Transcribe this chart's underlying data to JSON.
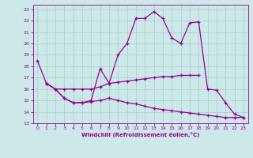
{
  "xlabel": "Windchill (Refroidissement éolien,°C)",
  "background_color": "#cce8e8",
  "line_color": "#990099",
  "grid_color": "#aacccc",
  "xlim": [
    -0.5,
    23.5
  ],
  "ylim": [
    13.0,
    23.4
  ],
  "yticks": [
    13,
    14,
    15,
    16,
    17,
    18,
    19,
    20,
    21,
    22,
    23
  ],
  "xticks": [
    0,
    1,
    2,
    3,
    4,
    5,
    6,
    7,
    8,
    9,
    10,
    11,
    12,
    13,
    14,
    15,
    16,
    17,
    18,
    19,
    20,
    21,
    22,
    23
  ],
  "line1_x": [
    0,
    1,
    2,
    3,
    4,
    5,
    6,
    7,
    8,
    9,
    10,
    11,
    12,
    13,
    14,
    15,
    16,
    17,
    18,
    19,
    20,
    21,
    22,
    23
  ],
  "line1_y": [
    18.5,
    16.5,
    16.0,
    15.2,
    14.8,
    14.8,
    15.0,
    17.8,
    16.5,
    19.0,
    20.0,
    22.2,
    22.2,
    22.8,
    22.2,
    20.5,
    20.0,
    21.8,
    21.9,
    16.0,
    15.9,
    14.8,
    13.8,
    13.5
  ],
  "line2_x": [
    1,
    2,
    3,
    4,
    5,
    6,
    7,
    8,
    9,
    10,
    11,
    12,
    13,
    14,
    15,
    16,
    17,
    18
  ],
  "line2_y": [
    16.5,
    16.0,
    16.0,
    16.0,
    16.0,
    16.0,
    16.2,
    16.5,
    16.6,
    16.7,
    16.8,
    16.9,
    17.0,
    17.1,
    17.1,
    17.2,
    17.2,
    17.2
  ],
  "line3_x": [
    1,
    2,
    3,
    4,
    5,
    6,
    7,
    8,
    9,
    10,
    11,
    12,
    13,
    14,
    15,
    16,
    17,
    18,
    19,
    20,
    21,
    22,
    23
  ],
  "line3_y": [
    16.5,
    16.0,
    15.2,
    14.8,
    14.8,
    14.9,
    15.0,
    15.2,
    15.0,
    14.8,
    14.7,
    14.5,
    14.3,
    14.2,
    14.1,
    14.0,
    13.9,
    13.8,
    13.7,
    13.6,
    13.5,
    13.5,
    13.5
  ]
}
